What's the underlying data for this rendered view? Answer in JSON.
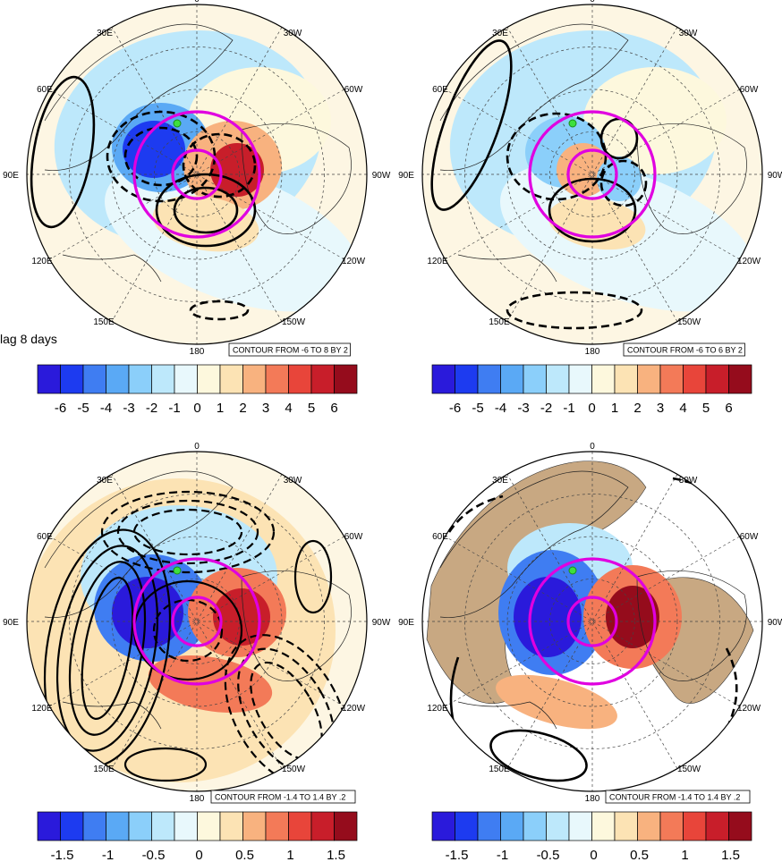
{
  "annotation": {
    "lag_text": "lag 8 days"
  },
  "colors": {
    "ocean": "#fdf6e3",
    "land_shade": "#c8a882",
    "ring": "#e000e0",
    "marker": "#3ee03e",
    "contour": "#000000",
    "palette": [
      "#2a1adb",
      "#1d3bf0",
      "#3f7df2",
      "#5aa9f5",
      "#8bcffa",
      "#bde8fb",
      "#e8f8fc",
      "#fdf8dd",
      "#fce3b4",
      "#f8b27f",
      "#f37a58",
      "#e8453a",
      "#c81e2a",
      "#950c1c"
    ]
  },
  "colorbar_labels": {
    "integer": [
      "-6",
      "-5",
      "-4",
      "-3",
      "-2",
      "-1",
      "0",
      "1",
      "2",
      "3",
      "4",
      "5",
      "6"
    ],
    "fractional": [
      "-1.5",
      "-1",
      "-0.5",
      "0",
      "0.5",
      "1",
      "1.5"
    ]
  },
  "longitude_labels": {
    "top": "0",
    "upper_left": "30E",
    "upper_right": "30W",
    "left_high": "60E",
    "right_high": "60W",
    "left_mid": "90E",
    "right_mid": "90W",
    "left_low": "120E",
    "right_low": "120W",
    "bottom_left": "150E",
    "bottom_right": "150W",
    "bottom": "180"
  },
  "panels": [
    {
      "id": "top-left",
      "contour_info": "CONTOUR FROM -6 TO 8 BY 2",
      "colorbar": "integer",
      "style": "top_left"
    },
    {
      "id": "top-right",
      "contour_info": "CONTOUR FROM -6 TO 6 BY 2",
      "colorbar": "integer",
      "style": "top_right"
    },
    {
      "id": "bottom-left",
      "contour_info": "CONTOUR FROM -1.4 TO 1.4 BY .2",
      "colorbar": "fractional",
      "style": "bottom_left"
    },
    {
      "id": "bottom-right",
      "contour_info": "CONTOUR FROM -1.4 TO 1.4 BY .2",
      "colorbar": "fractional",
      "style": "bottom_right"
    }
  ]
}
